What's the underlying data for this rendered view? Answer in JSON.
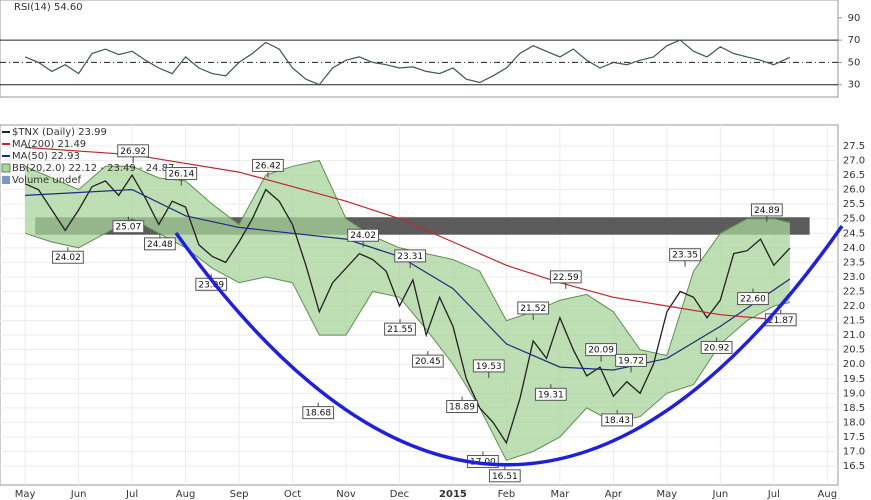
{
  "chart_data": [
    {
      "type": "line",
      "title": "RSI(14) 54.60",
      "x": [
        0,
        0.25,
        0.5,
        0.75,
        1,
        1.25,
        1.5,
        1.75,
        2,
        2.25,
        2.5,
        2.75,
        3,
        3.25,
        3.5,
        3.75,
        4,
        4.25,
        4.5,
        4.75,
        5,
        5.25,
        5.5,
        5.75,
        6,
        6.25,
        6.5,
        6.75,
        7,
        7.25,
        7.5,
        7.75,
        8,
        8.25,
        8.5,
        8.75,
        9,
        9.25,
        9.5,
        9.75,
        10,
        10.25,
        10.5,
        10.75,
        11,
        11.25,
        11.5,
        11.75,
        12,
        12.25,
        12.5,
        12.75,
        13,
        13.25,
        13.5,
        13.75,
        14,
        14.3
      ],
      "values": [
        55,
        50,
        42,
        48,
        40,
        58,
        62,
        57,
        60,
        52,
        45,
        40,
        55,
        45,
        40,
        38,
        50,
        58,
        68,
        62,
        45,
        35,
        30,
        45,
        52,
        55,
        50,
        48,
        45,
        46,
        42,
        40,
        45,
        35,
        32,
        38,
        45,
        58,
        65,
        60,
        55,
        62,
        52,
        45,
        50,
        48,
        52,
        55,
        65,
        70,
        60,
        55,
        64,
        58,
        55,
        52,
        48,
        54.6
      ],
      "color": "#3d5a4a",
      "xlim": [
        -0.47,
        15.2
      ],
      "ylim": [
        19,
        106
      ],
      "yticks": [
        30,
        50,
        70,
        90
      ],
      "levels": [
        70,
        30
      ],
      "midline": 50
    },
    {
      "type": "line",
      "x": [
        0,
        0.25,
        0.5,
        0.75,
        1,
        1.25,
        1.5,
        1.75,
        2,
        2.25,
        2.5,
        2.75,
        3,
        3.25,
        3.5,
        3.75,
        4,
        4.25,
        4.5,
        4.75,
        5,
        5.25,
        5.5,
        5.75,
        6,
        6.25,
        6.5,
        6.75,
        7,
        7.25,
        7.5,
        7.75,
        8,
        8.25,
        8.5,
        8.75,
        9,
        9.25,
        9.5,
        9.75,
        10,
        10.25,
        10.5,
        10.75,
        11,
        11.25,
        11.5,
        11.75,
        12,
        12.25,
        12.5,
        12.75,
        13,
        13.25,
        13.5,
        13.75,
        14,
        14.3
      ],
      "series": [
        {
          "name": "$TNX (Daily) 23.99",
          "color": "#222222",
          "values": [
            26.2,
            26.0,
            25.3,
            24.6,
            25.3,
            26.1,
            26.3,
            25.8,
            26.5,
            25.7,
            24.8,
            25.6,
            25.4,
            24.1,
            23.7,
            23.5,
            24.2,
            25.0,
            26.0,
            25.6,
            24.8,
            23.4,
            21.8,
            22.8,
            23.3,
            23.8,
            23.6,
            23.2,
            22.0,
            22.9,
            21.0,
            22.3,
            21.3,
            19.5,
            18.5,
            18.0,
            17.3,
            18.8,
            20.8,
            20.2,
            21.6,
            20.5,
            19.6,
            19.9,
            18.9,
            19.4,
            19.0,
            20.0,
            21.8,
            22.5,
            22.3,
            21.6,
            22.2,
            23.8,
            23.9,
            24.3,
            23.4,
            23.99
          ]
        },
        {
          "name": "MA(200) 21.49",
          "color": "#c0282e",
          "x": [
            0,
            2,
            4,
            6,
            7,
            8,
            9,
            10,
            11,
            12,
            13,
            14.3
          ],
          "values": [
            27.45,
            27.2,
            26.6,
            25.6,
            25.0,
            24.2,
            23.4,
            22.8,
            22.3,
            22.0,
            21.7,
            21.49
          ]
        },
        {
          "name": "MA(50) 22.93",
          "color": "#1f2a80",
          "x": [
            0,
            1,
            2,
            3,
            4,
            5,
            6,
            7,
            8,
            9,
            10,
            11,
            12,
            13,
            14.3
          ],
          "values": [
            25.8,
            25.9,
            26.0,
            25.1,
            24.7,
            24.5,
            24.3,
            23.7,
            22.6,
            20.7,
            19.9,
            19.8,
            20.2,
            21.3,
            22.93
          ]
        }
      ],
      "bands": {
        "name": "BB(20,2.0) 22.12 - 23.49 - 24.87",
        "color": "#a8d39a",
        "edge": "#5f8f52",
        "x": [
          0,
          0.5,
          1,
          1.5,
          2,
          2.5,
          3,
          3.5,
          4,
          4.5,
          5,
          5.5,
          6,
          6.5,
          7,
          7.5,
          8,
          8.5,
          9,
          9.5,
          10,
          10.5,
          11,
          11.5,
          12,
          12.5,
          13,
          13.5,
          14,
          14.3
        ],
        "upper": [
          26.8,
          26.4,
          26.0,
          26.8,
          26.8,
          26.4,
          26.3,
          25.5,
          24.8,
          26.5,
          26.8,
          27.0,
          25.0,
          24.4,
          24.0,
          23.8,
          23.6,
          23.2,
          21.5,
          21.8,
          22.2,
          22.4,
          21.8,
          20.5,
          20.3,
          23.2,
          24.5,
          25.0,
          25.0,
          24.87
        ],
        "lower": [
          24.5,
          24.2,
          24.0,
          24.5,
          25.0,
          24.5,
          24.0,
          23.3,
          22.8,
          23.0,
          22.8,
          21.0,
          21.0,
          22.5,
          22.3,
          21.2,
          20.0,
          18.5,
          16.7,
          17.0,
          17.5,
          18.5,
          18.0,
          18.2,
          19.0,
          19.3,
          20.7,
          21.5,
          22.0,
          22.12
        ]
      },
      "legend_extra": "Volume undef",
      "zone": {
        "x": [
          0.19,
          14.67
        ],
        "y": [
          24.45,
          25.05
        ],
        "color": "#4a4a4a"
      },
      "annotations": [
        {
          "x": 2.02,
          "value": 26.92
        },
        {
          "x": 4.54,
          "value": 26.42
        },
        {
          "x": 2.92,
          "value": 26.14
        },
        {
          "x": 1.93,
          "value": 25.07
        },
        {
          "x": 0.8,
          "value": 24.02
        },
        {
          "x": 2.52,
          "value": 24.48
        },
        {
          "x": 3.48,
          "value": 23.09
        },
        {
          "x": 5.48,
          "value": 18.68
        },
        {
          "x": 6.32,
          "value": 24.02
        },
        {
          "x": 7.2,
          "value": 23.31
        },
        {
          "x": 7.01,
          "value": 21.55
        },
        {
          "x": 7.53,
          "value": 20.45
        },
        {
          "x": 8.17,
          "value": 18.89
        },
        {
          "x": 8.67,
          "value": 19.53
        },
        {
          "x": 8.56,
          "value": 17,
          "label": "17.00"
        },
        {
          "x": 8.97,
          "value": 16.51
        },
        {
          "x": 9.5,
          "value": 21.52
        },
        {
          "x": 10.11,
          "value": 22.59
        },
        {
          "x": 9.83,
          "value": 19.31
        },
        {
          "x": 10.77,
          "value": 20.09
        },
        {
          "x": 11.33,
          "value": 19.72
        },
        {
          "x": 11.07,
          "value": 18.43
        },
        {
          "x": 12.34,
          "value": 23.35
        },
        {
          "x": 12.93,
          "value": 20.92
        },
        {
          "x": 13.87,
          "value": 24.89
        },
        {
          "x": 13.61,
          "value": 22.6,
          "label": "22.60"
        },
        {
          "x": 14.13,
          "value": 21.87
        }
      ],
      "xlim": [
        -0.47,
        15.2
      ],
      "ylim": [
        15.85,
        28.22
      ],
      "xticks": [
        {
          "value": 0,
          "label": "May"
        },
        {
          "value": 1,
          "label": "Jun"
        },
        {
          "value": 2,
          "label": "Jul"
        },
        {
          "value": 3,
          "label": "Aug"
        },
        {
          "value": 4,
          "label": "Sep"
        },
        {
          "value": 5,
          "label": "Oct"
        },
        {
          "value": 6,
          "label": "Nov"
        },
        {
          "value": 7,
          "label": "Dec"
        },
        {
          "value": 8,
          "label": "2015"
        },
        {
          "value": 9,
          "label": "Feb"
        },
        {
          "value": 10,
          "label": "Mar"
        },
        {
          "value": 11,
          "label": "Apr"
        },
        {
          "value": 12,
          "label": "May"
        },
        {
          "value": 13,
          "label": "Jun"
        },
        {
          "value": 14,
          "label": "Jul"
        },
        {
          "value": 15,
          "label": "Aug"
        }
      ],
      "yticks": [
        16.5,
        {
          "value": 17,
          "label": "17.0"
        },
        17.5,
        {
          "value": 18,
          "label": "18.0"
        },
        18.5,
        {
          "value": 19,
          "label": "19.0"
        },
        19.5,
        {
          "value": 20,
          "label": "20.0"
        },
        20.5,
        {
          "value": 21,
          "label": "21.0"
        },
        21.5,
        {
          "value": 22,
          "label": "22.0"
        },
        22.5,
        {
          "value": 23,
          "label": "23.0"
        },
        23.5,
        {
          "value": 24,
          "label": "24.0"
        },
        24.5,
        {
          "value": 25,
          "label": "25.0"
        },
        25.5,
        {
          "value": 26,
          "label": "26.0"
        },
        26.5,
        {
          "value": 27,
          "label": "27.0"
        },
        27.5
      ],
      "grid": true
    }
  ]
}
